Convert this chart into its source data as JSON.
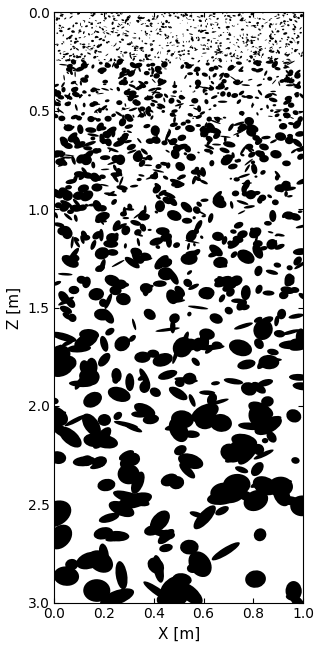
{
  "xlabel": "X [m]",
  "ylabel": "Z [m]",
  "xlim": [
    0,
    1.0
  ],
  "ylim": [
    0,
    3.0
  ],
  "x_ticks": [
    0,
    0.2,
    0.4,
    0.6,
    0.8,
    1.0
  ],
  "y_ticks": [
    0,
    0.5,
    1.0,
    1.5,
    2.0,
    2.5,
    3.0
  ],
  "seed": 42,
  "background_color": "#ffffff",
  "particle_color": "#000000",
  "figsize": [
    3.21,
    6.49
  ],
  "dpi": 100,
  "zones": [
    {
      "zmin": 0.0,
      "zmax": 0.25,
      "n": 700,
      "wmin": 0.003,
      "wmax": 0.018,
      "hmin": 0.002,
      "hmax": 0.012
    },
    {
      "zmin": 0.25,
      "zmax": 0.55,
      "n": 350,
      "wmin": 0.005,
      "wmax": 0.04,
      "hmin": 0.004,
      "hmax": 0.03
    },
    {
      "zmin": 0.55,
      "zmax": 0.85,
      "n": 220,
      "wmin": 0.008,
      "wmax": 0.055,
      "hmin": 0.006,
      "hmax": 0.042
    },
    {
      "zmin": 0.85,
      "zmax": 1.2,
      "n": 160,
      "wmin": 0.01,
      "wmax": 0.065,
      "hmin": 0.008,
      "hmax": 0.05
    },
    {
      "zmin": 1.2,
      "zmax": 1.6,
      "n": 110,
      "wmin": 0.015,
      "wmax": 0.085,
      "hmin": 0.01,
      "hmax": 0.065
    },
    {
      "zmin": 1.6,
      "zmax": 2.0,
      "n": 80,
      "wmin": 0.02,
      "wmax": 0.11,
      "hmin": 0.015,
      "hmax": 0.085
    },
    {
      "zmin": 2.0,
      "zmax": 2.4,
      "n": 60,
      "wmin": 0.025,
      "wmax": 0.13,
      "hmin": 0.02,
      "hmax": 0.1
    },
    {
      "zmin": 2.4,
      "zmax": 3.0,
      "n": 55,
      "wmin": 0.03,
      "wmax": 0.16,
      "hmin": 0.025,
      "hmax": 0.12
    }
  ]
}
